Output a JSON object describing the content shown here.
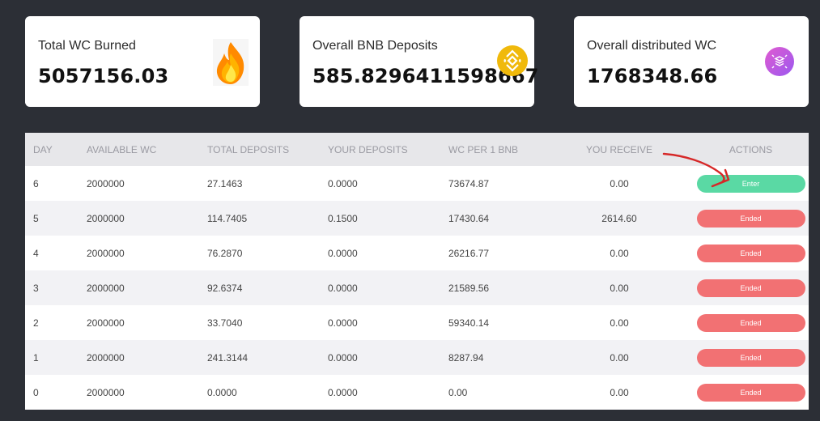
{
  "cards": [
    {
      "title": "Total WC Burned",
      "value": "5057156.03",
      "icon": "fire-icon"
    },
    {
      "title": "Overall BNB Deposits",
      "value": "585.8296411598667",
      "icon": "bnb-icon"
    },
    {
      "title": "Overall distributed WC",
      "value": "1768348.66",
      "icon": "distribution-icon"
    }
  ],
  "table": {
    "headers": [
      "DAY",
      "AVAILABLE WC",
      "TOTAL DEPOSITS",
      "YOUR DEPOSITS",
      "WC PER 1 BNB",
      "YOU RECEIVE",
      "ACTIONS"
    ],
    "rows": [
      {
        "day": "6",
        "available": "2000000",
        "total": "27.1463",
        "yours": "0.0000",
        "per_bnb": "73674.87",
        "receive": "0.00",
        "action": "Enter"
      },
      {
        "day": "5",
        "available": "2000000",
        "total": "114.7405",
        "yours": "0.1500",
        "per_bnb": "17430.64",
        "receive": "2614.60",
        "action": "Ended"
      },
      {
        "day": "4",
        "available": "2000000",
        "total": "76.2870",
        "yours": "0.0000",
        "per_bnb": "26216.77",
        "receive": "0.00",
        "action": "Ended"
      },
      {
        "day": "3",
        "available": "2000000",
        "total": "92.6374",
        "yours": "0.0000",
        "per_bnb": "21589.56",
        "receive": "0.00",
        "action": "Ended"
      },
      {
        "day": "2",
        "available": "2000000",
        "total": "33.7040",
        "yours": "0.0000",
        "per_bnb": "59340.14",
        "receive": "0.00",
        "action": "Ended"
      },
      {
        "day": "1",
        "available": "2000000",
        "total": "241.3144",
        "yours": "0.0000",
        "per_bnb": "8287.94",
        "receive": "0.00",
        "action": "Ended"
      },
      {
        "day": "0",
        "available": "2000000",
        "total": "0.0000",
        "yours": "0.0000",
        "per_bnb": "0.00",
        "receive": "0.00",
        "action": "Ended"
      }
    ]
  },
  "colors": {
    "background": "#2c2f36",
    "enter_button": "#5ad9a4",
    "ended_button": "#f27173",
    "bnb": "#f0b90b",
    "annotation": "#d62828"
  }
}
